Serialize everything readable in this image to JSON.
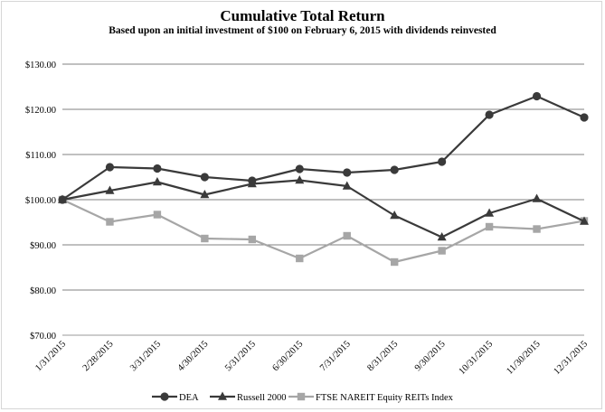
{
  "chart_data": {
    "type": "line",
    "title": "Cumulative Total Return",
    "subtitle": "Based upon an initial investment of $100 on February 6, 2015 with dividends reinvested",
    "xlabel": "",
    "ylabel": "",
    "categories": [
      "1/31/2015",
      "2/28/2015",
      "3/31/2015",
      "4/30/2015",
      "5/31/2015",
      "6/30/2015",
      "7/31/2015",
      "8/31/2015",
      "9/30/2015",
      "10/31/2015",
      "11/30/2015",
      "12/31/2015"
    ],
    "ylim": [
      70,
      130
    ],
    "y_ticks": [
      70,
      80,
      90,
      100,
      110,
      120,
      130
    ],
    "y_tick_labels": [
      "$70.00",
      "$80.00",
      "$90.00",
      "$100.00",
      "$110.00",
      "$120.00",
      "$130.00"
    ],
    "grid": "horizontal",
    "legend_position": "bottom",
    "series": [
      {
        "name": "DEA",
        "color": "#3a3a3a",
        "marker": "circle",
        "values": [
          100,
          107.2,
          106.9,
          105,
          104.2,
          106.8,
          106,
          106.6,
          108.4,
          118.8,
          122.9,
          118.2
        ]
      },
      {
        "name": "Russell 2000",
        "color": "#3a3a3a",
        "marker": "triangle",
        "values": [
          100,
          102,
          103.9,
          101.1,
          103.5,
          104.3,
          103,
          96.5,
          91.7,
          97,
          100.2,
          95.2
        ]
      },
      {
        "name": "FTSE NAREIT Equity REITs Index",
        "color": "#a6a6a6",
        "marker": "square",
        "values": [
          100,
          95.1,
          96.7,
          91.4,
          91.2,
          87,
          92,
          86.2,
          88.7,
          94,
          93.5,
          95.3
        ]
      }
    ]
  }
}
